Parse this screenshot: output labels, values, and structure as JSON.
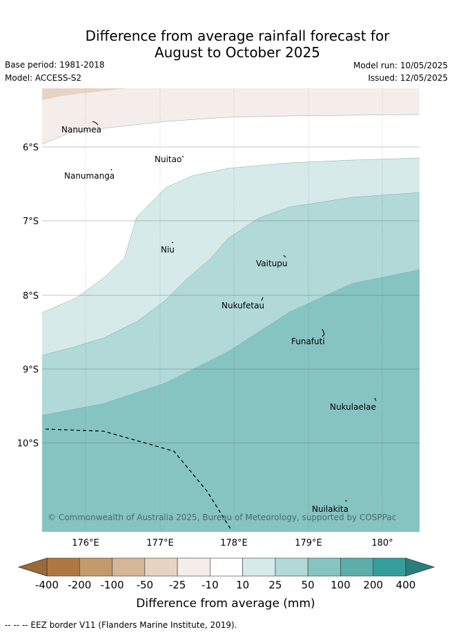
{
  "title_line1": "Difference from average rainfall forecast for",
  "title_line2": "August to October 2025",
  "base_period": "Base period: 1981-2018",
  "model": "Model: ACCESS-S2",
  "model_run": "Model run: 10/05/2025",
  "issued": "Issued: 12/05/2025",
  "copyright": "© Commonwealth of Australia 2025, Bureau of Meteorology, supported by COSPPac",
  "colorbar": {
    "label": "Difference from average (mm)",
    "ticks": [
      "-400",
      "-200",
      "-100",
      "-50",
      "-25",
      "-10",
      "10",
      "25",
      "50",
      "100",
      "200",
      "400"
    ],
    "colors": [
      "#ad7841",
      "#c49a6c",
      "#d6b696",
      "#e6d4c3",
      "#f5edea",
      "#ffffff",
      "#d6eae9",
      "#b0d9d8",
      "#86c4c2",
      "#5dadab",
      "#349e9c"
    ],
    "extend_low_color": "#9a6937",
    "extend_high_color": "#2b7e7e"
  },
  "map": {
    "lon_range": [
      175.4,
      180.5
    ],
    "lat_range": [
      -11.2,
      -5.2
    ],
    "lat_ticks": [
      "6°S",
      "7°S",
      "8°S",
      "9°S",
      "10°S"
    ],
    "lon_ticks": [
      "176°E",
      "177°E",
      "178°E",
      "179°E",
      "180°"
    ],
    "islands": [
      {
        "name": "Nanumea"
      },
      {
        "name": "Nuitao"
      },
      {
        "name": "Nanumanga"
      },
      {
        "name": "Niu"
      },
      {
        "name": "Vaitupu"
      },
      {
        "name": "Nukufetau"
      },
      {
        "name": "Funafuti"
      },
      {
        "name": "Nukulaelae"
      },
      {
        "name": "Nuilakita"
      }
    ]
  },
  "legend_note": "--  --  -- EEZ border V11 (Flanders Marine Institute, 2019)."
}
